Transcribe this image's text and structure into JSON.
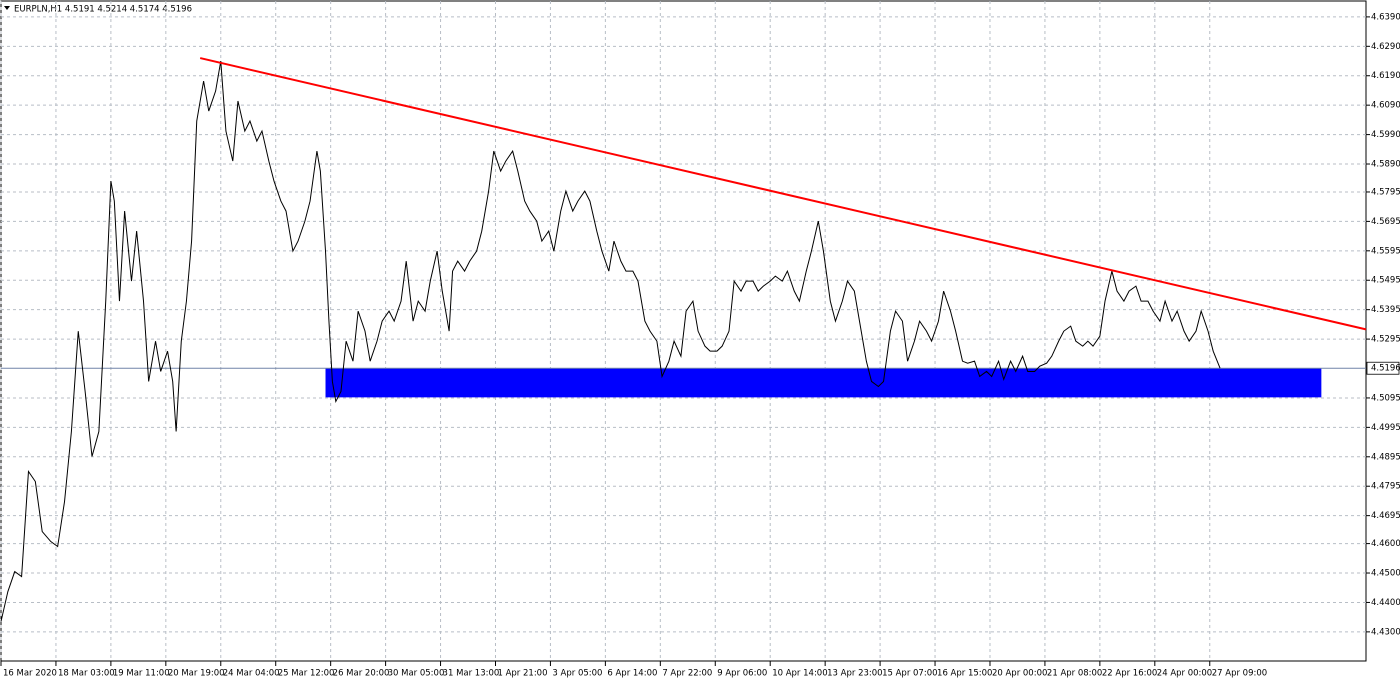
{
  "chart_data": {
    "type": "line",
    "title": "EURPLN,H1  4.5191 4.5214 4.5174 4.5196",
    "xlim": [
      0,
      795
    ],
    "ylim": [
      4.4201,
      4.6444
    ],
    "grid": true,
    "grid_color": "#b8bec6",
    "xticks": [
      {
        "value": 0,
        "label": "16 Mar 2020"
      },
      {
        "value": 32,
        "label": "18 Mar 03:00"
      },
      {
        "value": 64,
        "label": "19 Mar 11:00"
      },
      {
        "value": 96,
        "label": "20 Mar 19:00"
      },
      {
        "value": 128,
        "label": "24 Mar 04:00"
      },
      {
        "value": 160,
        "label": "25 Mar 12:00"
      },
      {
        "value": 192,
        "label": "26 Mar 20:00"
      },
      {
        "value": 224,
        "label": "30 Mar 05:00"
      },
      {
        "value": 256,
        "label": "31 Mar 13:00"
      },
      {
        "value": 288,
        "label": "1 Apr 21:00"
      },
      {
        "value": 320,
        "label": "3 Apr 05:00"
      },
      {
        "value": 352,
        "label": "6 Apr 14:00"
      },
      {
        "value": 384,
        "label": "7 Apr 22:00"
      },
      {
        "value": 416,
        "label": "9 Apr 06:00"
      },
      {
        "value": 448,
        "label": "10 Apr 14:00"
      },
      {
        "value": 480,
        "label": "13 Apr 23:00"
      },
      {
        "value": 512,
        "label": "15 Apr 07:00"
      },
      {
        "value": 544,
        "label": "16 Apr 15:00"
      },
      {
        "value": 576,
        "label": "20 Apr 00:00"
      },
      {
        "value": 608,
        "label": "21 Apr 08:00"
      },
      {
        "value": 640,
        "label": "22 Apr 16:00"
      },
      {
        "value": 672,
        "label": "24 Apr 00:00"
      },
      {
        "value": 704,
        "label": "27 Apr 09:00"
      }
    ],
    "yticks": [
      {
        "value": 4.639,
        "label": "4.6390"
      },
      {
        "value": 4.629,
        "label": "4.6290"
      },
      {
        "value": 4.619,
        "label": "4.6190"
      },
      {
        "value": 4.609,
        "label": "4.6090"
      },
      {
        "value": 4.599,
        "label": "4.5990"
      },
      {
        "value": 4.589,
        "label": "4.5890"
      },
      {
        "value": 4.5795,
        "label": "4.5795"
      },
      {
        "value": 4.5695,
        "label": "4.5695"
      },
      {
        "value": 4.5595,
        "label": "4.5595"
      },
      {
        "value": 4.5495,
        "label": "4.5495"
      },
      {
        "value": 4.5395,
        "label": "4.5395"
      },
      {
        "value": 4.5295,
        "label": "4.5295"
      },
      {
        "value": 4.5095,
        "label": "4.5095"
      },
      {
        "value": 4.4995,
        "label": "4.4995"
      },
      {
        "value": 4.4895,
        "label": "4.4895"
      },
      {
        "value": 4.4795,
        "label": "4.4795"
      },
      {
        "value": 4.4695,
        "label": "4.4695"
      },
      {
        "value": 4.46,
        "label": "4.4600"
      },
      {
        "value": 4.45,
        "label": "4.4500"
      },
      {
        "value": 4.44,
        "label": "4.4400"
      },
      {
        "value": 4.43,
        "label": "4.4300"
      }
    ],
    "last_price": 4.5196,
    "series": [
      {
        "color": "#000000",
        "x": [
          0,
          4,
          8,
          12,
          16,
          20,
          24,
          29,
          33,
          37,
          41,
          45,
          49,
          53,
          57,
          61,
          64,
          66,
          69,
          72,
          76,
          79,
          83,
          86,
          90,
          93,
          97,
          100,
          102,
          105,
          108,
          111,
          114,
          118,
          121,
          125,
          128,
          131,
          135,
          138,
          142,
          145,
          149,
          152,
          156,
          159,
          163,
          166,
          170,
          173,
          177,
          180,
          184,
          186,
          189,
          191,
          193,
          195,
          198,
          201,
          205,
          208,
          212,
          215,
          219,
          222,
          226,
          229,
          233,
          236,
          240,
          243,
          247,
          250,
          254,
          257,
          261,
          263,
          266,
          270,
          273,
          277,
          280,
          284,
          287,
          291,
          294,
          298,
          301,
          305,
          308,
          312,
          315,
          319,
          322,
          326,
          329,
          333,
          336,
          340,
          343,
          347,
          350,
          354,
          357,
          361,
          364,
          368,
          371,
          375,
          378,
          382,
          385,
          389,
          392,
          396,
          399,
          403,
          406,
          410,
          413,
          417,
          420,
          424,
          427,
          431,
          434,
          438,
          441,
          444,
          448,
          451,
          455,
          458,
          462,
          465,
          469,
          472,
          476,
          479,
          483,
          486,
          490,
          493,
          497,
          500,
          504,
          507,
          511,
          514,
          518,
          521,
          525,
          528,
          532,
          535,
          539,
          542,
          546,
          549,
          553,
          556,
          560,
          563,
          567,
          570,
          574,
          577,
          581,
          584,
          588,
          591,
          595,
          598,
          602,
          605,
          609,
          612,
          616,
          619,
          623,
          626,
          630,
          633,
          636,
          640,
          643,
          647,
          650,
          654,
          657,
          661,
          664,
          668,
          671,
          675,
          678,
          682,
          685,
          689,
          692,
          696,
          699,
          703,
          706,
          710
        ],
        "values": [
          4.4335,
          4.4437,
          4.4505,
          4.4488,
          4.4845,
          4.4811,
          4.4641,
          4.4607,
          4.459,
          4.4743,
          4.4981,
          4.5322,
          4.5117,
          4.4896,
          4.4981,
          4.5424,
          4.5832,
          4.5764,
          4.5424,
          4.573,
          4.5492,
          4.5662,
          4.5424,
          4.5151,
          4.5288,
          4.5185,
          4.5254,
          4.5151,
          4.4981,
          4.5288,
          4.5424,
          4.5628,
          4.6036,
          4.6172,
          4.607,
          4.6138,
          4.624,
          4.6002,
          4.59,
          4.6104,
          4.6002,
          4.6036,
          4.5968,
          4.6002,
          4.59,
          4.5832,
          4.5764,
          4.573,
          4.5594,
          4.5628,
          4.5696,
          4.5764,
          4.5934,
          4.5866,
          4.5594,
          4.5356,
          4.5151,
          4.5083,
          4.5117,
          4.5288,
          4.522,
          4.539,
          4.5322,
          4.522,
          4.5288,
          4.5356,
          4.539,
          4.5356,
          4.5424,
          4.556,
          4.5356,
          4.5424,
          4.539,
          4.5492,
          4.5594,
          4.5458,
          4.5322,
          4.5526,
          4.556,
          4.5526,
          4.556,
          4.5594,
          4.5662,
          4.5798,
          4.5934,
          4.5866,
          4.59,
          4.5934,
          4.5866,
          4.5764,
          4.573,
          4.5696,
          4.5628,
          4.5662,
          4.5594,
          4.573,
          4.5798,
          4.573,
          4.5764,
          4.5798,
          4.5764,
          4.5662,
          4.5594,
          4.5526,
          4.5628,
          4.556,
          4.5526,
          4.5526,
          4.5492,
          4.5356,
          4.5322,
          4.5288,
          4.5168,
          4.522,
          4.5288,
          4.5237,
          4.539,
          4.5424,
          4.5322,
          4.5271,
          4.5254,
          4.5254,
          4.5271,
          4.5322,
          4.5492,
          4.5458,
          4.5492,
          4.5492,
          4.5458,
          4.5475,
          4.5492,
          4.5509,
          4.5492,
          4.5526,
          4.5458,
          4.5424,
          4.5526,
          4.5594,
          4.5696,
          4.5594,
          4.5424,
          4.5356,
          4.5424,
          4.5492,
          4.5458,
          4.5356,
          4.522,
          4.5151,
          4.5134,
          4.5151,
          4.5322,
          4.539,
          4.5356,
          4.522,
          4.5288,
          4.5356,
          4.5322,
          4.5288,
          4.5356,
          4.5458,
          4.539,
          4.5322,
          4.522,
          4.5213,
          4.522,
          4.5168,
          4.5185,
          4.5168,
          4.522,
          4.5158,
          4.522,
          4.5185,
          4.5237,
          4.5185,
          4.5185,
          4.5203,
          4.5213,
          4.5237,
          4.5288,
          4.5322,
          4.5339,
          4.5288,
          4.5271,
          4.5288,
          4.5271,
          4.5305,
          4.5424,
          4.5526,
          4.5458,
          4.5424,
          4.5458,
          4.5475,
          4.5424,
          4.5424,
          4.539,
          4.5356,
          4.5424,
          4.5356,
          4.539,
          4.5322,
          4.5288,
          4.5322,
          4.539,
          4.5322,
          4.5254,
          4.5196
        ]
      }
    ],
    "trendline": {
      "color": "#ff0000",
      "x": [
        116,
        795
      ],
      "values": [
        4.625,
        4.5328
      ]
    },
    "zone": {
      "color": "#0000ff",
      "x": [
        189,
        769
      ],
      "values": [
        4.5196,
        4.5097
      ]
    }
  }
}
